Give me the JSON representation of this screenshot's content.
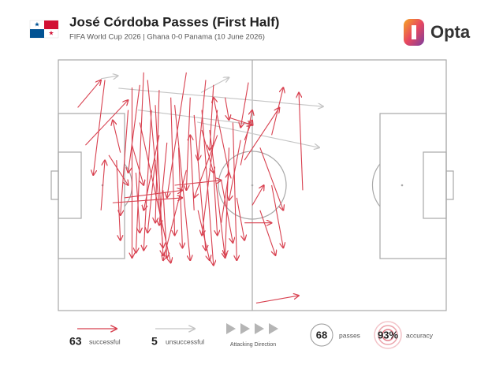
{
  "title": "José Córdoba Passes (First Half)",
  "subtitle": "FIFA World Cup 2026 | Ghana 0-0 Panama (10 June 2026)",
  "brand": "Opta",
  "chart_data": {
    "type": "pass-map",
    "xlim": [
      0,
      100
    ],
    "ylim": [
      0,
      100
    ],
    "successful_color": "#d8404f",
    "unsuccessful_color": "#c4c4c4",
    "successful_passes": [
      [
        5,
        19,
        11,
        8
      ],
      [
        7,
        34,
        18,
        16
      ],
      [
        22,
        5,
        20,
        77
      ],
      [
        23,
        8,
        27,
        75
      ],
      [
        19,
        11,
        19,
        79
      ],
      [
        15,
        40,
        16,
        72
      ],
      [
        13,
        38,
        18,
        50
      ],
      [
        14,
        57,
        32,
        55
      ],
      [
        33,
        5,
        28,
        55
      ],
      [
        29,
        15,
        30,
        70
      ],
      [
        30,
        18,
        34,
        80
      ],
      [
        26,
        12,
        25,
        65
      ],
      [
        24,
        20,
        22,
        76
      ],
      [
        21,
        25,
        29,
        81
      ],
      [
        37,
        20,
        40,
        82
      ],
      [
        35,
        22,
        38,
        76
      ],
      [
        39,
        28,
        43,
        79
      ],
      [
        31,
        35,
        32,
        75
      ],
      [
        33,
        44,
        27,
        80
      ],
      [
        27,
        52,
        28,
        79
      ],
      [
        41,
        30,
        35,
        55
      ],
      [
        45,
        25,
        46,
        80
      ],
      [
        44,
        35,
        43,
        78
      ],
      [
        47,
        32,
        44,
        56
      ],
      [
        49,
        9,
        47,
        27
      ],
      [
        43,
        15,
        44,
        24
      ],
      [
        37,
        28,
        40,
        45
      ],
      [
        17,
        55,
        32,
        52
      ],
      [
        19,
        34,
        22,
        50
      ],
      [
        28,
        33,
        26,
        66
      ],
      [
        20,
        45,
        21,
        69
      ],
      [
        25,
        40,
        23,
        69
      ],
      [
        26,
        30,
        22,
        60
      ],
      [
        40,
        45,
        41,
        70
      ],
      [
        42,
        48,
        45,
        73
      ],
      [
        48,
        32,
        50,
        24
      ],
      [
        44,
        23,
        50,
        26
      ],
      [
        55,
        50,
        58,
        75
      ],
      [
        52,
        60,
        56,
        78
      ],
      [
        52,
        35,
        58,
        60
      ],
      [
        44,
        45,
        40,
        15
      ],
      [
        35,
        60,
        34,
        30
      ],
      [
        42,
        65,
        44,
        45
      ],
      [
        48,
        65,
        55,
        65
      ],
      [
        47,
        42,
        50,
        20
      ],
      [
        55,
        30,
        58,
        11
      ],
      [
        63,
        52,
        62,
        13
      ],
      [
        48,
        40,
        57,
        19
      ],
      [
        30,
        50,
        42,
        48
      ],
      [
        16,
        37,
        14,
        24
      ],
      [
        21,
        10,
        18,
        45
      ],
      [
        34,
        15,
        33,
        52
      ],
      [
        38,
        8,
        36,
        40
      ],
      [
        36,
        60,
        39,
        80
      ],
      [
        50,
        58,
        53,
        50
      ],
      [
        46,
        55,
        48,
        72
      ],
      [
        41,
        20,
        37,
        70
      ],
      [
        25,
        18,
        27,
        78
      ],
      [
        18,
        20,
        16,
        62
      ],
      [
        40,
        10,
        39,
        36
      ],
      [
        11,
        60,
        12,
        40
      ],
      [
        51,
        97,
        62,
        94
      ],
      [
        12,
        8,
        9,
        46
      ]
    ],
    "unsuccessful_passes": [
      [
        11,
        7.5,
        15.4,
        6.3
      ],
      [
        36.8,
        13,
        44,
        7
      ],
      [
        15.5,
        11.3,
        68.3,
        18.6
      ],
      [
        20.5,
        20,
        50,
        25.8
      ],
      [
        35.8,
        24.8,
        67.3,
        35
      ]
    ],
    "legend": {
      "successful_count": 63,
      "successful_label": "successful",
      "unsuccessful_count": 5,
      "unsuccessful_label": "unsuccessful",
      "direction_label": "Attacking Direction",
      "passes_count": 68,
      "passes_label": "passes",
      "accuracy": 93,
      "accuracy_value_label": "93%",
      "accuracy_label": "accuracy"
    }
  }
}
